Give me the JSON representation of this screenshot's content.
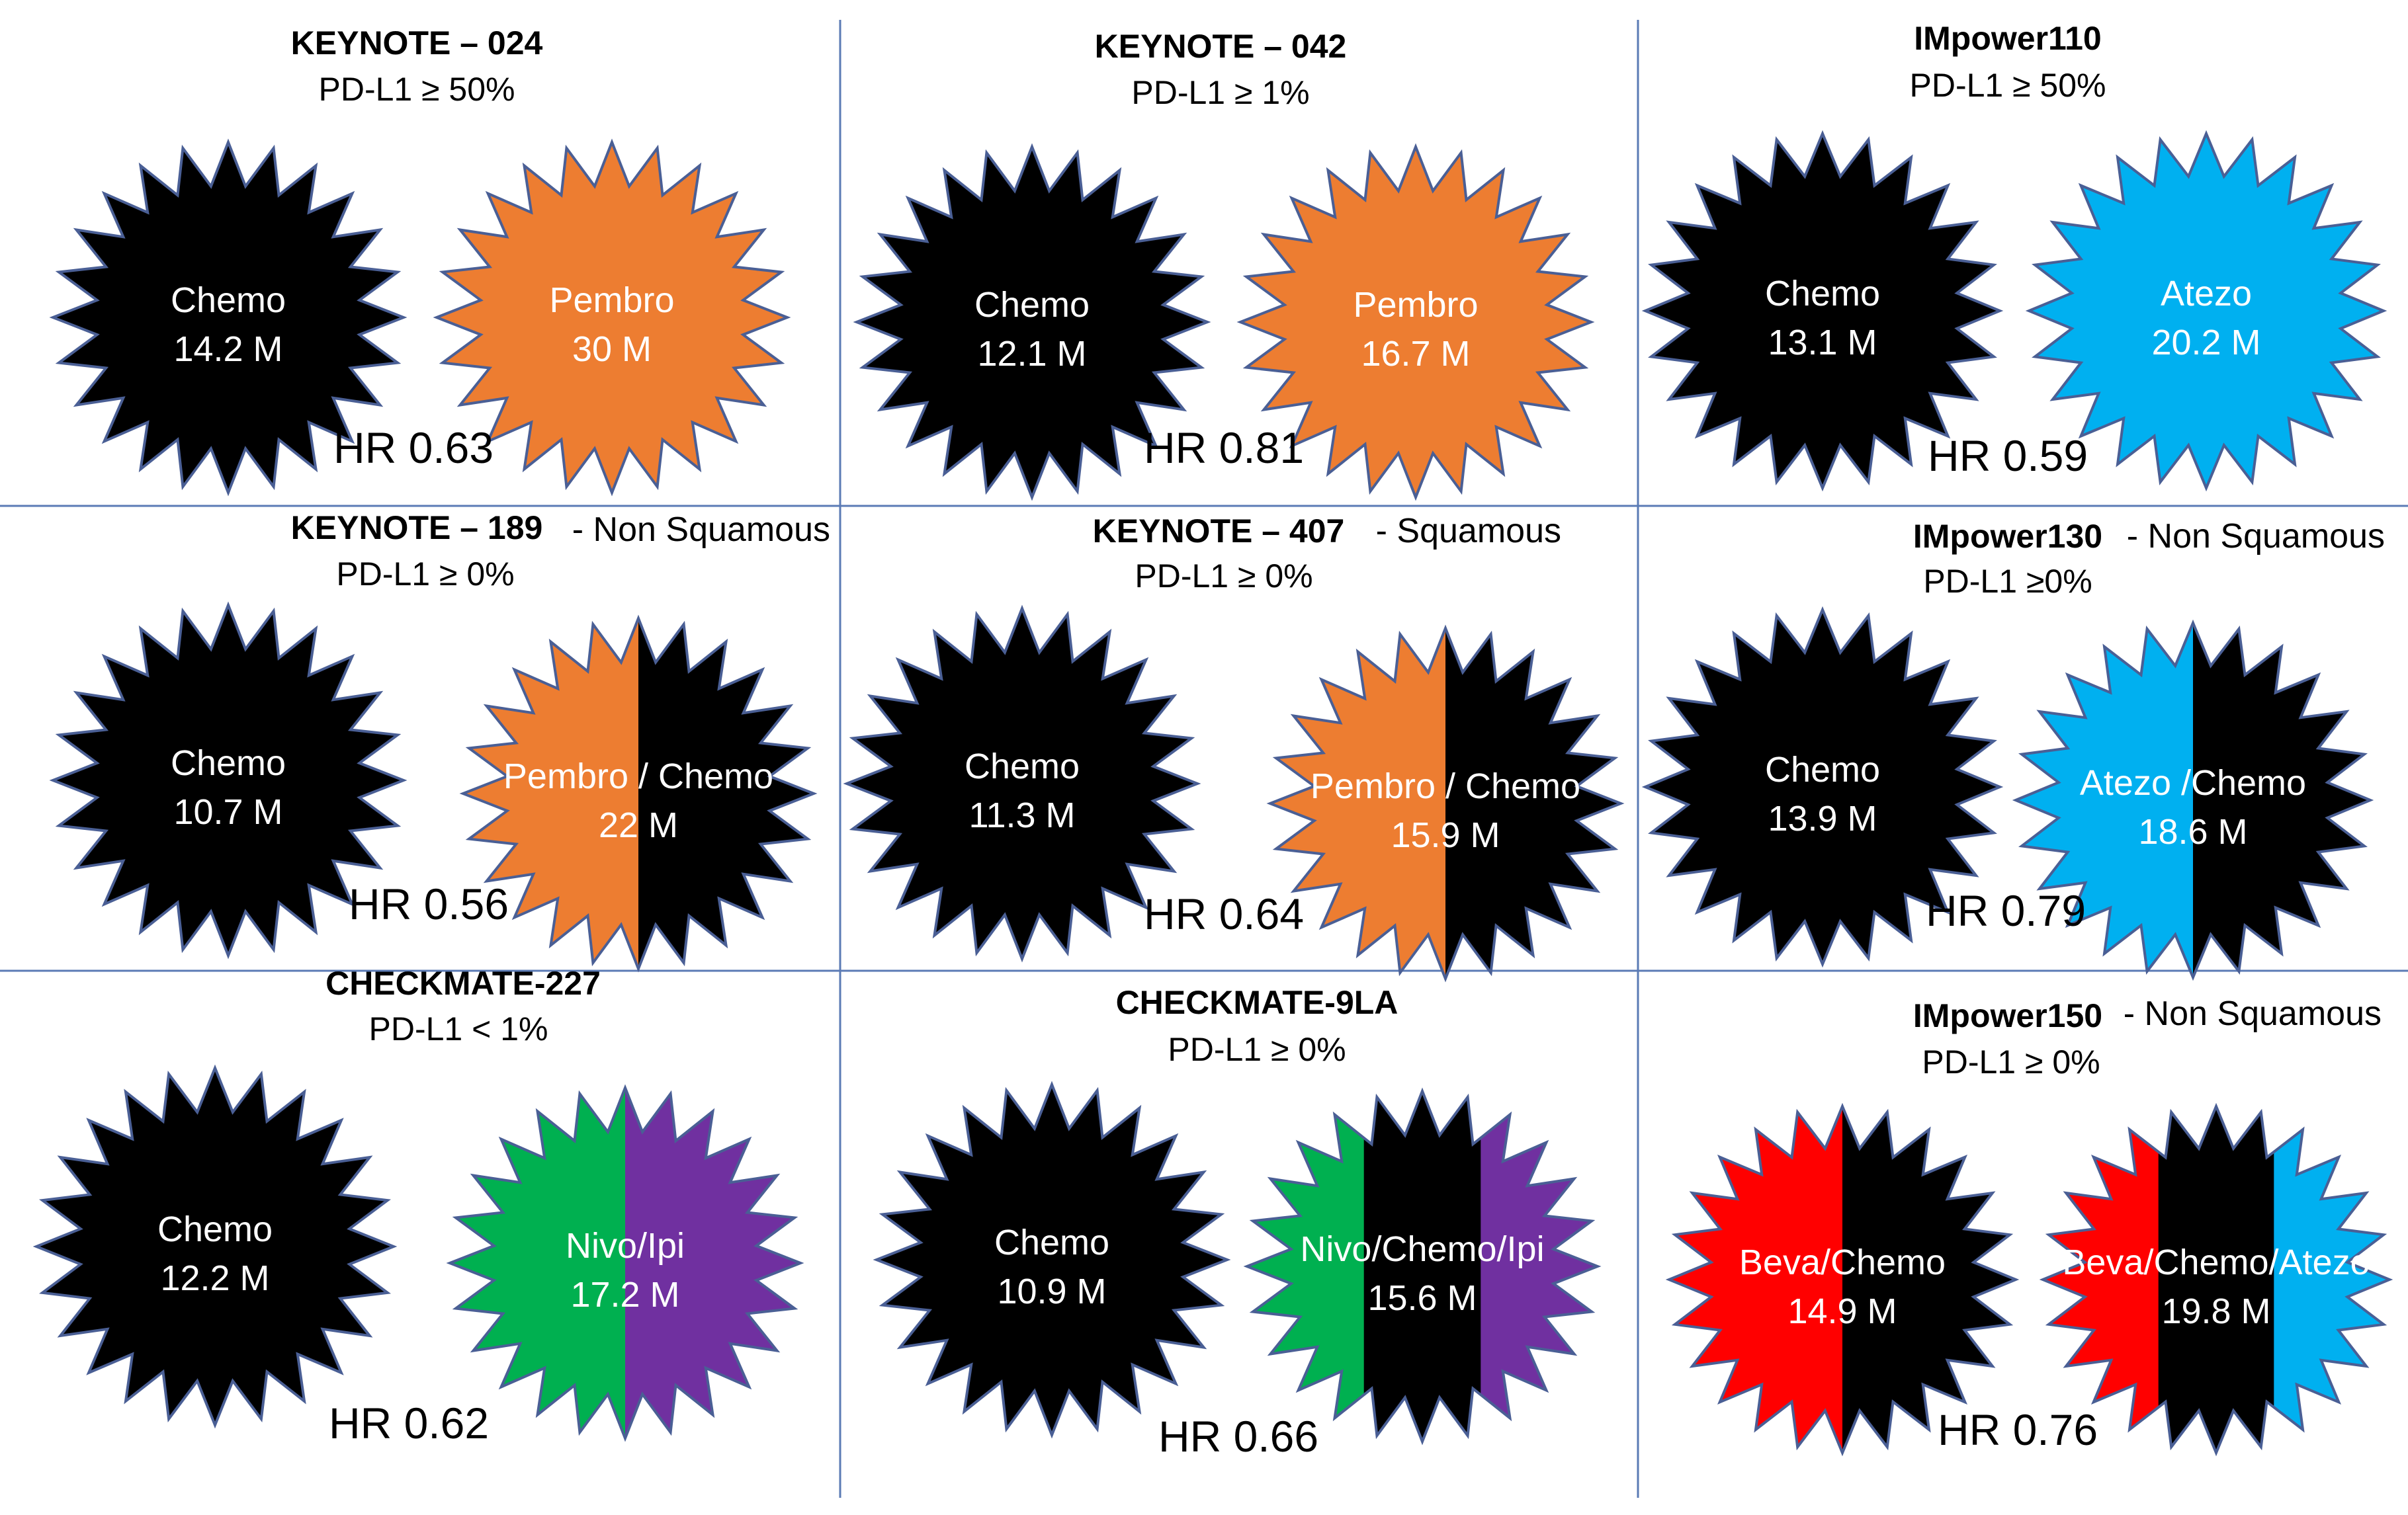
{
  "colors": {
    "chemo": "#000000",
    "pembro": "#ED7D31",
    "atezo": "#00B0F0",
    "nivo": "#00B050",
    "ipi": "#7030A0",
    "beva": "#FF0000",
    "outline": "#4a5f95",
    "divider": "#5b7bb5"
  },
  "panels": [
    {
      "title": "KEYNOTE – 024",
      "note": "",
      "criteria": "PD-L1 ≥ 50%",
      "hr": "HR 0.63",
      "left_star": {
        "label": "Chemo",
        "value": "14.2 M",
        "colors": [
          "chemo"
        ]
      },
      "right_star": {
        "label": "Pembro",
        "value": "30 M",
        "colors": [
          "pembro"
        ]
      }
    },
    {
      "title": "KEYNOTE – 042",
      "note": "",
      "criteria": "PD-L1 ≥ 1%",
      "hr": "HR 0.81",
      "left_star": {
        "label": "Chemo",
        "value": "12.1 M",
        "colors": [
          "chemo"
        ]
      },
      "right_star": {
        "label": "Pembro",
        "value": "16.7 M",
        "colors": [
          "pembro"
        ]
      }
    },
    {
      "title": "IMpower110",
      "note": "",
      "criteria": "PD-L1 ≥ 50%",
      "hr": "HR 0.59",
      "left_star": {
        "label": "Chemo",
        "value": "13.1 M",
        "colors": [
          "chemo"
        ]
      },
      "right_star": {
        "label": "Atezo",
        "value": "20.2 M",
        "colors": [
          "atezo"
        ]
      }
    },
    {
      "title": "KEYNOTE – 189",
      "note": "- Non Squamous",
      "criteria": "PD-L1 ≥ 0%",
      "hr": "HR 0.56",
      "left_star": {
        "label": "Chemo",
        "value": "10.7 M",
        "colors": [
          "chemo"
        ]
      },
      "right_star": {
        "label": "Pembro / Chemo",
        "value": "22 M",
        "colors": [
          "pembro",
          "chemo"
        ]
      }
    },
    {
      "title": "KEYNOTE – 407",
      "note": "- Squamous",
      "criteria": "PD-L1 ≥ 0%",
      "hr": "HR 0.64",
      "left_star": {
        "label": "Chemo",
        "value": "11.3 M",
        "colors": [
          "chemo"
        ]
      },
      "right_star": {
        "label": "Pembro / Chemo",
        "value": "15.9 M",
        "colors": [
          "pembro",
          "chemo"
        ]
      }
    },
    {
      "title": "IMpower130",
      "note": "- Non Squamous",
      "criteria": "PD-L1 ≥0%",
      "hr": "HR 0.79",
      "left_star": {
        "label": "Chemo",
        "value": "13.9 M",
        "colors": [
          "chemo"
        ]
      },
      "right_star": {
        "label": "Atezo /Chemo",
        "value": "18.6 M",
        "colors": [
          "atezo",
          "chemo"
        ]
      }
    },
    {
      "title": "CHECKMATE-227",
      "note": "",
      "criteria": "PD-L1 < 1%",
      "hr": "HR 0.62",
      "left_star": {
        "label": "Chemo",
        "value": "12.2 M",
        "colors": [
          "chemo"
        ]
      },
      "right_star": {
        "label": "Nivo/Ipi",
        "value": "17.2 M",
        "colors": [
          "nivo",
          "ipi"
        ]
      }
    },
    {
      "title": "CHECKMATE-9LA",
      "note": "",
      "criteria": "PD-L1 ≥ 0%",
      "hr": "HR 0.66",
      "left_star": {
        "label": "Chemo",
        "value": "10.9 M",
        "colors": [
          "chemo"
        ]
      },
      "right_star": {
        "label": "Nivo/Chemo/Ipi",
        "value": "15.6 M",
        "colors": [
          "nivo",
          "chemo",
          "ipi"
        ]
      }
    },
    {
      "title": "IMpower150",
      "note": "- Non Squamous",
      "criteria": "PD-L1 ≥ 0%",
      "hr": "HR 0.76",
      "left_star": {
        "label": "Beva/Chemo",
        "value": "14.9 M",
        "colors": [
          "beva",
          "chemo"
        ]
      },
      "right_star": {
        "label": "Beva/Chemo/Atezo",
        "value": "19.8 M",
        "colors": [
          "beva",
          "chemo",
          "atezo"
        ]
      }
    }
  ]
}
